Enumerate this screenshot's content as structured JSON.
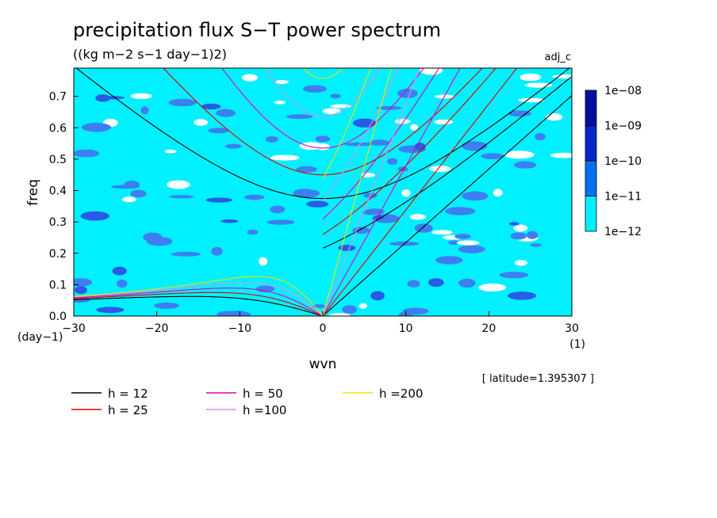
{
  "chart_data": {
    "type": "heatmap",
    "title": "precipitation flux S−T power spectrum",
    "subtitle": "((kg m−2 s−1 day−1)2)",
    "run_label": "adj_c",
    "xlabel": "wvn",
    "ylabel": "freq",
    "x_unit": "(1)",
    "y_unit": "(day−1)",
    "x_range": [
      -30,
      30
    ],
    "y_range": [
      0,
      0.79
    ],
    "x_ticks": [
      -30,
      -20,
      -10,
      0,
      10,
      20,
      30
    ],
    "x_tick_labels": [
      "−30",
      "−20",
      "−10",
      "0",
      "10",
      "20",
      "30"
    ],
    "y_ticks": [
      0.0,
      0.1,
      0.2,
      0.3,
      0.4,
      0.5,
      0.6,
      0.7
    ],
    "y_tick_labels": [
      "0.0",
      "0.1",
      "0.2",
      "0.3",
      "0.4",
      "0.5",
      "0.6",
      "0.7"
    ],
    "colorbar": {
      "levels": [
        "1e−12",
        "1e−11",
        "1e−10",
        "1e−09",
        "1e−08"
      ],
      "colors": [
        "#00f0ff",
        "#0070f0",
        "#0028c8",
        "#0010a0",
        "#4010b0"
      ]
    },
    "fill_colors": {
      "background": "#00f0ff",
      "low": "#ffffff",
      "mid": "#3d7ff0",
      "high": "#2a5ae6"
    },
    "latitude_note": "[ latitude=1.395307 ]",
    "series": [
      {
        "name": "h = 12",
        "equivalent_depth": 12,
        "color": "#000000"
      },
      {
        "name": "h = 25",
        "equivalent_depth": 25,
        "color": "#e00000"
      },
      {
        "name": "h = 50",
        "equivalent_depth": 50,
        "color": "#e000c0"
      },
      {
        "name": "h =100",
        "equivalent_depth": 100,
        "color": "#d890e8"
      },
      {
        "name": "h =200",
        "equivalent_depth": 200,
        "color": "#f0e000"
      }
    ]
  }
}
